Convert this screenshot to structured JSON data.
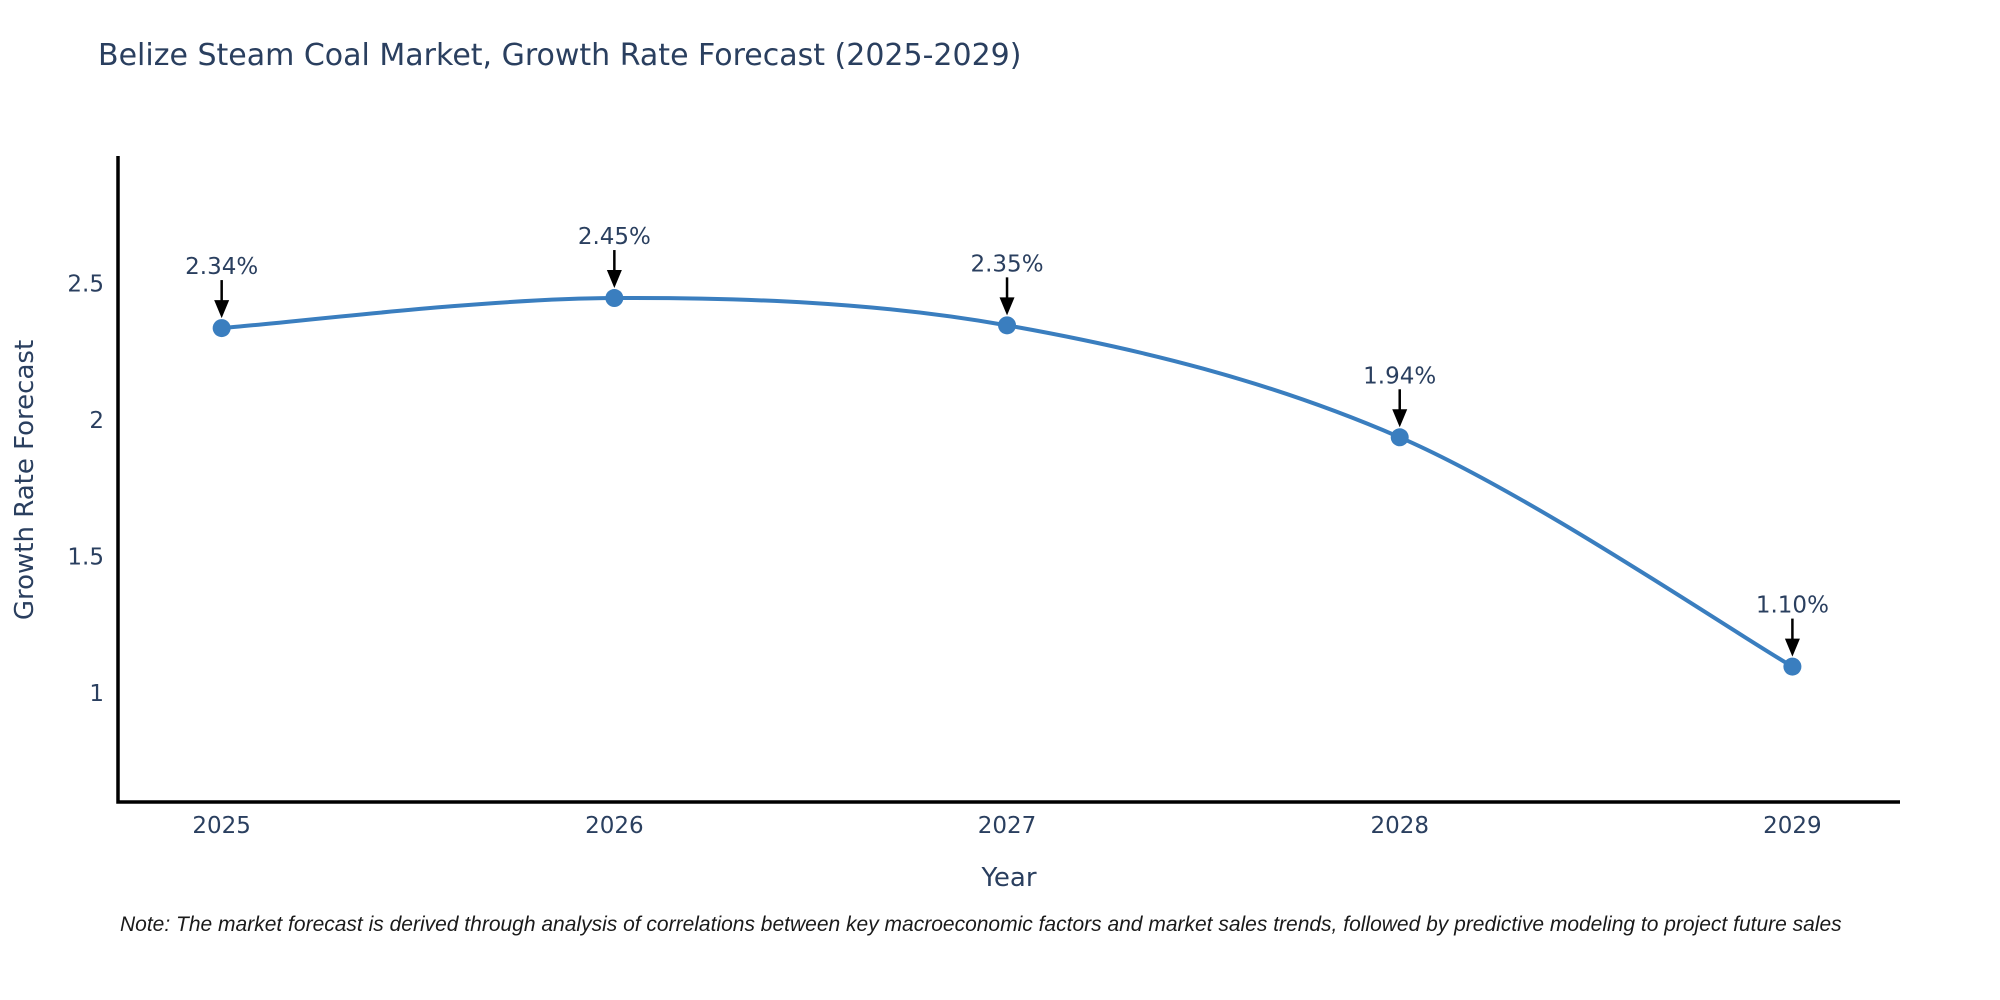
{
  "title": "Belize Steam Coal Market, Growth Rate Forecast (2025-2029)",
  "note": "Note: The market forecast is derived through analysis of correlations between key macroeconomic factors and market sales trends, followed by predictive modeling to project future sales",
  "chart_data": {
    "type": "line",
    "title": "Belize Steam Coal Market, Growth Rate Forecast (2025-2029)",
    "x": [
      2025,
      2026,
      2027,
      2028,
      2029
    ],
    "xticks": [
      "2025",
      "2026",
      "2027",
      "2028",
      "2029"
    ],
    "series": [
      {
        "name": "Growth Rate Forecast",
        "values": [
          2.34,
          2.45,
          2.35,
          1.94,
          1.1
        ]
      }
    ],
    "point_labels": [
      "2.34%",
      "2.45%",
      "2.35%",
      "1.94%",
      "1.10%"
    ],
    "xlabel": "Year",
    "ylabel": "Growth Rate Forecast",
    "yticks": [
      2.5,
      2,
      1.5,
      1
    ],
    "ylim": [
      0.604,
      2.963
    ],
    "xlim": [
      2024.736,
      2029.274
    ],
    "grid": false,
    "legend": "none",
    "line_shape": "spline",
    "marker_size": 9,
    "colors": {
      "line": "#3a7ebf",
      "marker": "#3a7ebf",
      "arrow": "#000000",
      "text": "#2a3f5f",
      "axis": "#000000",
      "note_text": "#1a1a1a"
    }
  }
}
